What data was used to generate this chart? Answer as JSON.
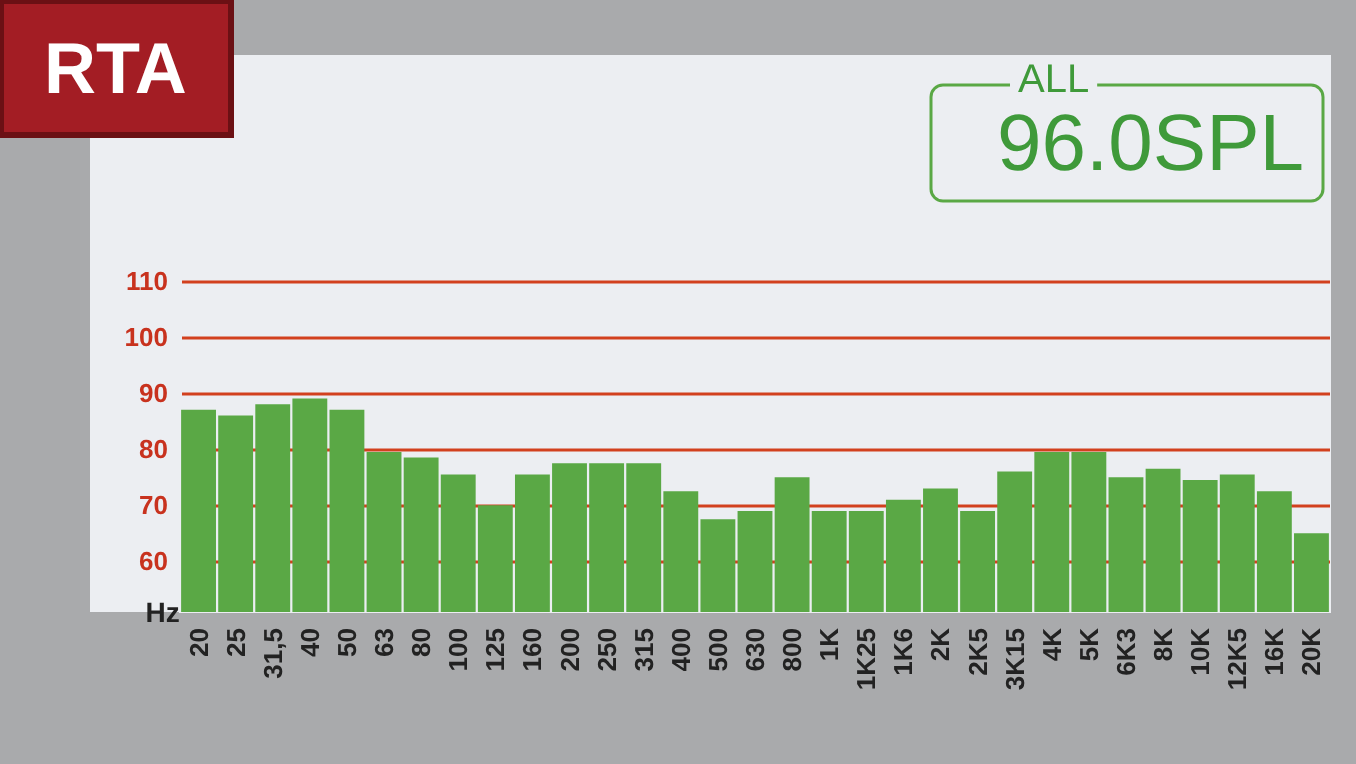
{
  "chart_data": {
    "type": "bar",
    "title": "RTA",
    "xlabel": "Hz",
    "annotations": [
      "ALL",
      "96.0SPL"
    ],
    "categories": [
      "20",
      "25",
      "31,5",
      "40",
      "50",
      "63",
      "80",
      "100",
      "125",
      "160",
      "200",
      "250",
      "315",
      "400",
      "500",
      "630",
      "800",
      "1K",
      "1K25",
      "1K6",
      "2K",
      "2K5",
      "3K15",
      "4K",
      "5K",
      "6K3",
      "8K",
      "10K",
      "12K5",
      "16K",
      "20K"
    ],
    "values": [
      87,
      86,
      88,
      89,
      87,
      79.5,
      78.5,
      75.5,
      70,
      75.5,
      77.5,
      77.5,
      77.5,
      72.5,
      67.5,
      69,
      75,
      69,
      69,
      71,
      73,
      69,
      76,
      79.5,
      79.5,
      75,
      76.5,
      74.5,
      75.5,
      72.5,
      65
    ],
    "color": "#5aa845",
    "ylim": [
      51,
      150
    ],
    "yticks": [
      60,
      70,
      80,
      90,
      100,
      110
    ],
    "grid": "y"
  }
}
